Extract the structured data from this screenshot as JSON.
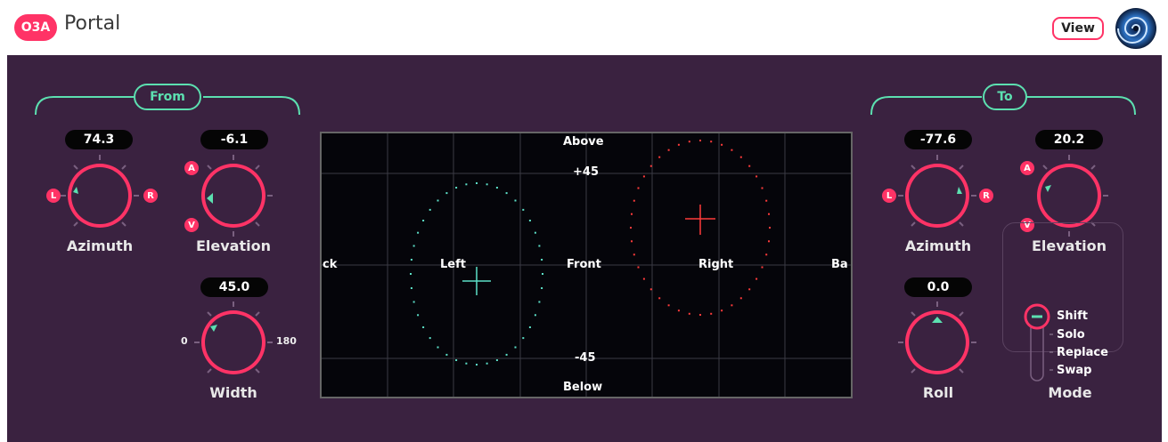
{
  "header": {
    "logo_text": "O3A",
    "app_title": "Portal",
    "view_label": "View"
  },
  "from": {
    "title": "From",
    "azimuth": {
      "value": "74.3",
      "label": "Azimuth",
      "left_badge": "L",
      "right_badge": "R"
    },
    "elevation": {
      "value": "-6.1",
      "label": "Elevation",
      "up_badge": "A",
      "down_badge": "V"
    },
    "width": {
      "value": "45.0",
      "label": "Width",
      "min_label": "0",
      "max_label": "180"
    }
  },
  "to": {
    "title": "To",
    "azimuth": {
      "value": "-77.6",
      "label": "Azimuth",
      "left_badge": "L",
      "right_badge": "R"
    },
    "elevation": {
      "value": "20.2",
      "label": "Elevation",
      "up_badge": "A",
      "down_badge": "V"
    },
    "roll": {
      "value": "0.0",
      "label": "Roll"
    }
  },
  "mode": {
    "label": "Mode",
    "options": [
      "Shift",
      "Solo",
      "Replace",
      "Swap"
    ],
    "selected": "Shift"
  },
  "map": {
    "above": "Above",
    "below": "Below",
    "plus45": "+45",
    "minus45": "-45",
    "left": "Left",
    "front": "Front",
    "right": "Right",
    "back_left": "ck",
    "back_right": "Ba"
  },
  "colors": {
    "accent": "#ff3366",
    "teal": "#5ce0b0",
    "panel": "#3a2240",
    "source": "#5ce0c8",
    "target": "#ff3b3b"
  }
}
